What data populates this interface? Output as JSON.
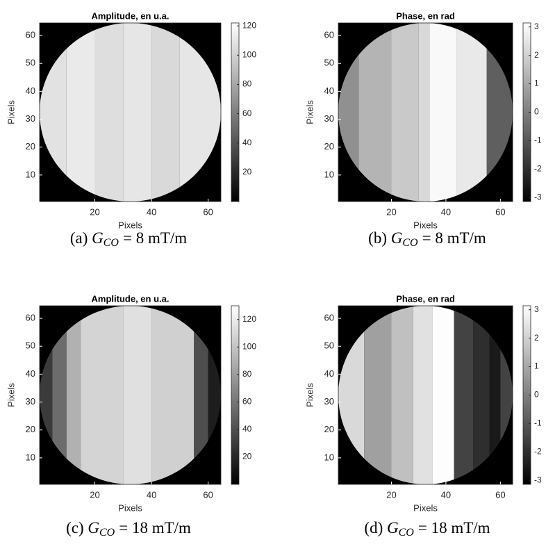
{
  "chart_data": [
    {
      "type": "image",
      "title": "Amplitude, en u.a.",
      "xlabel": "Pixels",
      "ylabel": "Pixels",
      "xlim": [
        0.5,
        64.5
      ],
      "ylim": [
        0.5,
        64.5
      ],
      "xticks": [
        20,
        40,
        60
      ],
      "yticks": [
        10,
        20,
        30,
        40,
        50,
        60
      ],
      "clim": [
        0,
        122
      ],
      "cticks": [
        20,
        40,
        60,
        80,
        100,
        120
      ],
      "colormap": "gray",
      "background": 0,
      "stripes": [
        {
          "x": [
            0.5,
            10
          ],
          "value": 108
        },
        {
          "x": [
            10,
            20
          ],
          "value": 112
        },
        {
          "x": [
            20,
            30
          ],
          "value": 106
        },
        {
          "x": [
            30,
            40
          ],
          "value": 110
        },
        {
          "x": [
            40,
            50
          ],
          "value": 104
        },
        {
          "x": [
            50,
            64.5
          ],
          "value": 110
        }
      ],
      "caption": {
        "label": "(a)",
        "var": "G",
        "sub": "CO",
        "text": "= 8 mT/m"
      }
    },
    {
      "type": "image",
      "title": "Phase, en rad",
      "xlabel": "Pixels",
      "ylabel": "Pixels",
      "xlim": [
        0.5,
        64.5
      ],
      "ylim": [
        0.5,
        64.5
      ],
      "xticks": [
        20,
        40,
        60
      ],
      "yticks": [
        10,
        20,
        30,
        40,
        50,
        60
      ],
      "clim": [
        -3.14,
        3.14
      ],
      "cticks": [
        -3,
        -2,
        -1,
        0,
        1,
        2,
        3
      ],
      "colormap": "gray",
      "background": -3.14,
      "stripes": [
        {
          "x": [
            0.5,
            8
          ],
          "value": 0.4
        },
        {
          "x": [
            8,
            20
          ],
          "value": 1.3
        },
        {
          "x": [
            20,
            30
          ],
          "value": 1.8
        },
        {
          "x": [
            30,
            34
          ],
          "value": 2.2
        },
        {
          "x": [
            34,
            44
          ],
          "value": 3.0
        },
        {
          "x": [
            44,
            55
          ],
          "value": 2.6
        },
        {
          "x": [
            55,
            64.5
          ],
          "value": -0.8
        }
      ],
      "caption": {
        "label": "(b)",
        "var": "G",
        "sub": "CO",
        "text": "= 8 mT/m"
      }
    },
    {
      "type": "image",
      "title": "Amplitude, en u.a.",
      "xlabel": "Pixels",
      "ylabel": "Pixels",
      "xlim": [
        0.5,
        64.5
      ],
      "ylim": [
        0.5,
        64.5
      ],
      "xticks": [
        20,
        40,
        60
      ],
      "yticks": [
        10,
        20,
        30,
        40,
        50,
        60
      ],
      "clim": [
        0,
        130
      ],
      "cticks": [
        20,
        40,
        60,
        80,
        100,
        120
      ],
      "colormap": "gray",
      "background": 0,
      "stripes": [
        {
          "x": [
            0.5,
            5
          ],
          "value": 30
        },
        {
          "x": [
            5,
            10
          ],
          "value": 55
        },
        {
          "x": [
            10,
            15
          ],
          "value": 90
        },
        {
          "x": [
            15,
            30
          ],
          "value": 108
        },
        {
          "x": [
            30,
            40
          ],
          "value": 114
        },
        {
          "x": [
            40,
            55
          ],
          "value": 106
        },
        {
          "x": [
            55,
            60
          ],
          "value": 40
        },
        {
          "x": [
            60,
            64.5
          ],
          "value": 15
        }
      ],
      "caption": {
        "label": "(c)",
        "var": "G",
        "sub": "CO",
        "text": "= 18 mT/m"
      }
    },
    {
      "type": "image",
      "title": "Phase, en rad",
      "xlabel": "Pixels",
      "ylabel": "Pixels",
      "xlim": [
        0.5,
        64.5
      ],
      "ylim": [
        0.5,
        64.5
      ],
      "xticks": [
        20,
        40,
        60
      ],
      "yticks": [
        10,
        20,
        30,
        40,
        50,
        60
      ],
      "clim": [
        -3.14,
        3.14
      ],
      "cticks": [
        -3,
        -2,
        -1,
        0,
        1,
        2,
        3
      ],
      "colormap": "gray",
      "background": -3.14,
      "stripes": [
        {
          "x": [
            0.5,
            10
          ],
          "value": 2.2
        },
        {
          "x": [
            10,
            20
          ],
          "value": 0.8
        },
        {
          "x": [
            20,
            28
          ],
          "value": 1.6
        },
        {
          "x": [
            28,
            35
          ],
          "value": 2.4
        },
        {
          "x": [
            35,
            43
          ],
          "value": 3.1
        },
        {
          "x": [
            43,
            50
          ],
          "value": -1.5
        },
        {
          "x": [
            50,
            56
          ],
          "value": -2.0
        },
        {
          "x": [
            56,
            60
          ],
          "value": -2.5
        },
        {
          "x": [
            60,
            64.5
          ],
          "value": -1.5
        }
      ],
      "caption": {
        "label": "(d)",
        "var": "G",
        "sub": "CO",
        "text": "= 18 mT/m"
      }
    }
  ]
}
